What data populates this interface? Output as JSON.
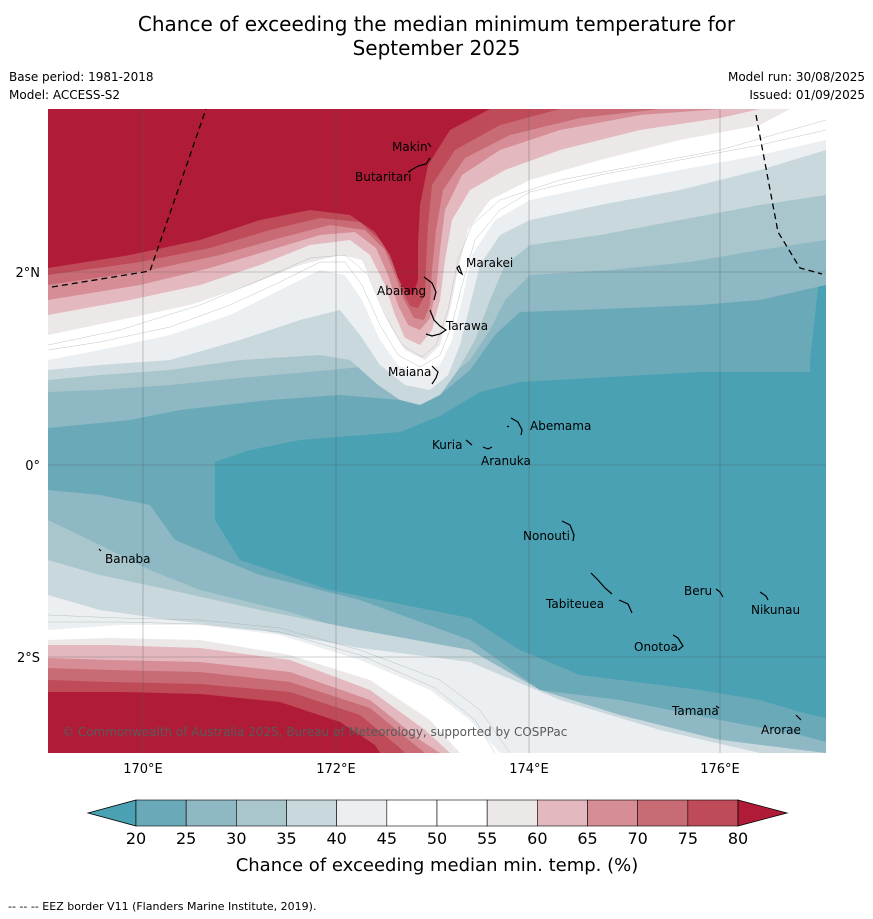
{
  "title_line1": "Chance of exceeding the median minimum temperature for",
  "title_line2": "September 2025",
  "base_period": "Base period: 1981-2018",
  "model": "Model: ACCESS-S2",
  "model_run": "Model run: 30/08/2025",
  "issued": "Issued: 01/09/2025",
  "copyright": "© Commonwealth of Australia 2025, Bureau of Meteorology, supported by COSPPac",
  "footer": "--  --  -- EEZ border V11 (Flanders Marine Institute, 2019).",
  "lat_labels": [
    "2°N",
    "0°",
    "2°S"
  ],
  "lon_labels": [
    "170°E",
    "172°E",
    "174°E",
    "176°E"
  ],
  "places": [
    "Makin",
    "Butaritari",
    "Marakei",
    "Abaiang",
    "Tarawa",
    "Maiana",
    "Abemama",
    "Kuria",
    "Aranuka",
    "Nonouti",
    "Banaba",
    "Beru",
    "Tabiteuea",
    "Nikunau",
    "Onotoa",
    "Tamana",
    "Arorae"
  ],
  "colorbar": {
    "ticks": [
      "20",
      "25",
      "30",
      "35",
      "40",
      "45",
      "50",
      "55",
      "60",
      "65",
      "70",
      "75",
      "80"
    ],
    "colors": [
      "#6aa9b8",
      "#8db8c4",
      "#a9c6cd",
      "#c9d8dd",
      "#eceff1",
      "#ffffff",
      "#ffffff",
      "#ece8e8",
      "#e3b8be",
      "#d68d96",
      "#c86b75",
      "#bf4a58"
    ],
    "under_color": "#4aa1b3",
    "over_color": "#b01c38",
    "title": "Chance of exceeding median min. temp. (%)"
  }
}
